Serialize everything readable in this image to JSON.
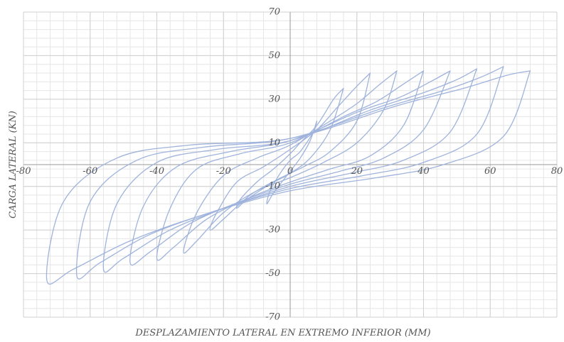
{
  "chart_data": {
    "type": "line",
    "title": "",
    "xlabel": "DESPLAZAMIENTO LATERAL EN EXTREMO INFERIOR (MM)",
    "ylabel": "CARGA LATERAL (KN)",
    "xlim": [
      -80,
      80
    ],
    "ylim": [
      -70,
      70
    ],
    "x_ticks": [
      -80,
      -60,
      -40,
      -20,
      0,
      20,
      40,
      60,
      80
    ],
    "y_ticks": [
      70,
      50,
      30,
      10,
      -10,
      -30,
      -50,
      -70
    ],
    "x_tick_labels": [
      "-80",
      "-60",
      "-40",
      "-20",
      "0",
      "20",
      "40",
      "60",
      "80"
    ],
    "y_tick_labels": [
      "70",
      "50",
      "30",
      "10",
      "-10",
      "-30",
      "-50",
      "-70"
    ],
    "x_minor_step": 4,
    "y_minor_step": 4,
    "grid": true,
    "line_color": "#9fb3dc",
    "series": [
      {
        "values": [
          [
            8,
            20
          ],
          [
            7,
            15
          ],
          [
            3,
            6
          ],
          [
            0,
            2
          ],
          [
            -3,
            -4
          ],
          [
            -6,
            -12
          ],
          [
            -7,
            -18
          ],
          [
            -5,
            -13
          ],
          [
            -1,
            -5
          ],
          [
            3,
            3
          ],
          [
            6,
            11
          ],
          [
            8,
            20
          ]
        ]
      },
      {
        "values": [
          [
            16,
            35
          ],
          [
            13,
            30
          ],
          [
            8,
            18
          ],
          [
            3,
            10
          ],
          [
            0,
            5
          ],
          [
            -5,
            -2
          ],
          [
            -10,
            -8
          ],
          [
            -15,
            -16
          ],
          [
            -16,
            -20
          ],
          [
            -13,
            -16
          ],
          [
            -6,
            -9
          ],
          [
            0,
            -4
          ],
          [
            6,
            3
          ],
          [
            12,
            16
          ],
          [
            16,
            35
          ]
        ]
      },
      {
        "values": [
          [
            24,
            42
          ],
          [
            20,
            36
          ],
          [
            14,
            26
          ],
          [
            8,
            16
          ],
          [
            0,
            7
          ],
          [
            -8,
            -1
          ],
          [
            -16,
            -8
          ],
          [
            -22,
            -22
          ],
          [
            -24,
            -30
          ],
          [
            -20,
            -25
          ],
          [
            -12,
            -14
          ],
          [
            -4,
            -7
          ],
          [
            4,
            -1
          ],
          [
            12,
            6
          ],
          [
            20,
            20
          ],
          [
            24,
            42
          ]
        ]
      },
      {
        "values": [
          [
            32,
            43
          ],
          [
            27,
            37
          ],
          [
            20,
            28
          ],
          [
            12,
            20
          ],
          [
            0,
            9
          ],
          [
            -10,
            3
          ],
          [
            -20,
            -5
          ],
          [
            -28,
            -22
          ],
          [
            -32,
            -40
          ],
          [
            -28,
            -35
          ],
          [
            -20,
            -22
          ],
          [
            -10,
            -12
          ],
          [
            0,
            -6
          ],
          [
            10,
            1
          ],
          [
            20,
            10
          ],
          [
            28,
            25
          ],
          [
            32,
            43
          ]
        ]
      },
      {
        "values": [
          [
            40,
            43
          ],
          [
            34,
            37
          ],
          [
            26,
            29
          ],
          [
            16,
            22
          ],
          [
            0,
            10
          ],
          [
            -15,
            5
          ],
          [
            -28,
            -2
          ],
          [
            -36,
            -20
          ],
          [
            -40,
            -43
          ],
          [
            -35,
            -38
          ],
          [
            -25,
            -25
          ],
          [
            -12,
            -15
          ],
          [
            0,
            -8
          ],
          [
            12,
            -2
          ],
          [
            24,
            4
          ],
          [
            34,
            18
          ],
          [
            40,
            43
          ]
        ]
      },
      {
        "values": [
          [
            48,
            43
          ],
          [
            42,
            38
          ],
          [
            33,
            31
          ],
          [
            20,
            24
          ],
          [
            0,
            11
          ],
          [
            -18,
            6
          ],
          [
            -34,
            -1
          ],
          [
            -44,
            -19
          ],
          [
            -48,
            -45
          ],
          [
            -42,
            -40
          ],
          [
            -30,
            -27
          ],
          [
            -15,
            -17
          ],
          [
            0,
            -9
          ],
          [
            15,
            -3
          ],
          [
            28,
            3
          ],
          [
            40,
            16
          ],
          [
            48,
            43
          ]
        ]
      },
      {
        "values": [
          [
            56,
            44
          ],
          [
            50,
            39
          ],
          [
            40,
            33
          ],
          [
            24,
            25
          ],
          [
            0,
            11
          ],
          [
            -22,
            7
          ],
          [
            -40,
            1
          ],
          [
            -52,
            -18
          ],
          [
            -56,
            -48
          ],
          [
            -50,
            -43
          ],
          [
            -36,
            -30
          ],
          [
            -18,
            -19
          ],
          [
            0,
            -10
          ],
          [
            18,
            -4
          ],
          [
            34,
            2
          ],
          [
            48,
            15
          ],
          [
            56,
            44
          ]
        ]
      },
      {
        "values": [
          [
            64,
            45
          ],
          [
            57,
            40
          ],
          [
            46,
            34
          ],
          [
            28,
            26
          ],
          [
            0,
            12
          ],
          [
            -26,
            8
          ],
          [
            -46,
            2
          ],
          [
            -60,
            -17
          ],
          [
            -64,
            -51
          ],
          [
            -57,
            -45
          ],
          [
            -42,
            -32
          ],
          [
            -22,
            -21
          ],
          [
            0,
            -11
          ],
          [
            22,
            -5
          ],
          [
            40,
            1
          ],
          [
            56,
            14
          ],
          [
            64,
            45
          ]
        ]
      },
      {
        "values": [
          [
            72,
            43
          ],
          [
            65,
            41
          ],
          [
            52,
            35
          ],
          [
            32,
            27
          ],
          [
            0,
            12
          ],
          [
            -30,
            9
          ],
          [
            -52,
            3
          ],
          [
            -68,
            -17
          ],
          [
            -73,
            -53
          ],
          [
            -65,
            -48
          ],
          [
            -48,
            -35
          ],
          [
            -26,
            -23
          ],
          [
            0,
            -12
          ],
          [
            26,
            -6
          ],
          [
            46,
            0
          ],
          [
            64,
            13
          ],
          [
            72,
            43
          ]
        ]
      }
    ]
  }
}
